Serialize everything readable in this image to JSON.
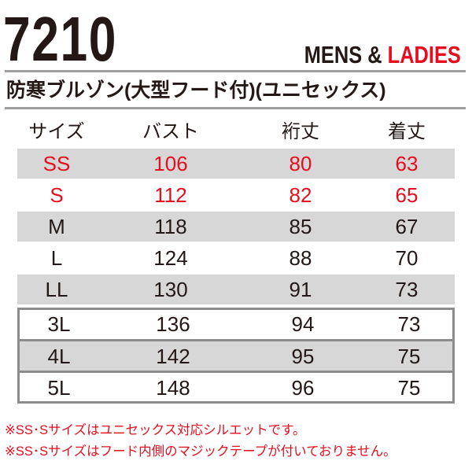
{
  "header": {
    "model_number": "7210",
    "gender_mens": "MENS &",
    "gender_ladies": "LADIES",
    "product_name": "防寒ブルゾン(大型フード付)(ユニセックス)"
  },
  "table": {
    "columns": [
      "サイズ",
      "バスト",
      "裄丈",
      "着丈"
    ],
    "rows": [
      {
        "size": "SS",
        "bust": "106",
        "sleeve": "80",
        "length": "63"
      },
      {
        "size": "S",
        "bust": "112",
        "sleeve": "82",
        "length": "65"
      },
      {
        "size": "M",
        "bust": "118",
        "sleeve": "85",
        "length": "67"
      },
      {
        "size": "L",
        "bust": "124",
        "sleeve": "88",
        "length": "70"
      },
      {
        "size": "LL",
        "bust": "130",
        "sleeve": "91",
        "length": "73"
      },
      {
        "size": "3L",
        "bust": "136",
        "sleeve": "94",
        "length": "73"
      },
      {
        "size": "4L",
        "bust": "142",
        "sleeve": "95",
        "length": "75"
      },
      {
        "size": "5L",
        "bust": "148",
        "sleeve": "96",
        "length": "75"
      }
    ]
  },
  "notes": [
    "※SS･Sサイズはユニセックス対応シルエットです。",
    "※SS･Sサイズはフード内側のマジックテープが付いておりません。"
  ],
  "colors": {
    "accent_red": "#e60d1e",
    "row_gray": "#d7d7d7",
    "rule_gray": "#9e9e9e"
  }
}
